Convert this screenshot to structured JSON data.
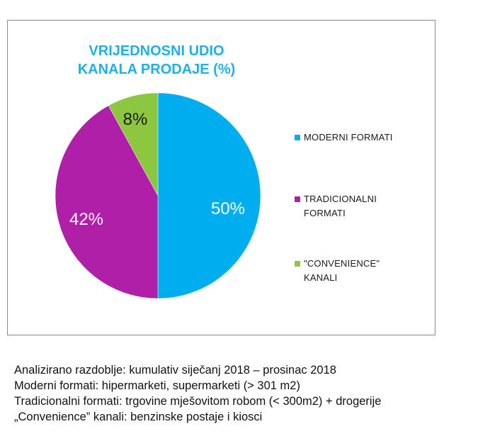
{
  "chart_data": {
    "type": "pie",
    "title_lines": [
      "VRIJEDNOSNI UDIO",
      "KANALA PRODAJE (%)"
    ],
    "slices": [
      {
        "name": "MODERNI FORMATI",
        "legend_lines": [
          "MODERNI FORMATI"
        ],
        "value": 50,
        "label": "50%",
        "color": "#00adef"
      },
      {
        "name": "TRADICIONALNI FORMATI",
        "legend_lines": [
          "TRADICIONALNI",
          "FORMATI"
        ],
        "value": 42,
        "label": "42%",
        "color": "#b01fa8"
      },
      {
        "name": "\"CONVENIENCE\" KANALI",
        "legend_lines": [
          "\"CONVENIENCE\"",
          "KANALI"
        ],
        "value": 8,
        "label": "8%",
        "color": "#8dc63f"
      }
    ],
    "legend_position": "right"
  },
  "notes": [
    "Analizirano razdoblje: kumulativ  siječanj 2018 – prosinac 2018",
    "Moderni formati: hipermarketi,  supermarketi  (> 301 m2)",
    "Tradicionalni  formati: trgovine mješovitom robom (< 300m2) + drogerije",
    "„Convenience”  kanali:  benzinske  postaje i kiosci"
  ]
}
